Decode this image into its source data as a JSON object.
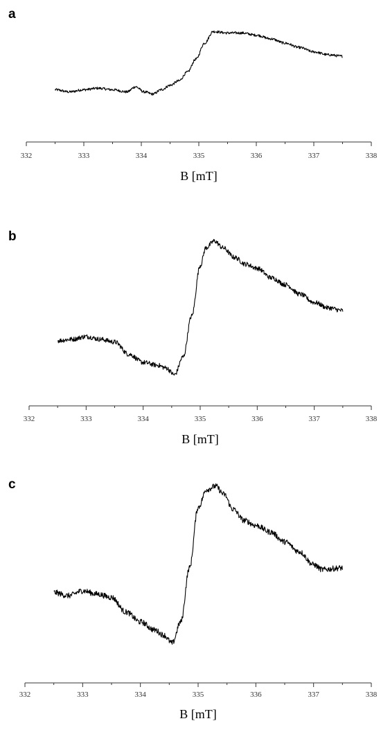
{
  "chart_data": [
    {
      "type": "line",
      "panel": "a",
      "xlabel": "B [mT]",
      "ylabel": "",
      "xlim": [
        332,
        338
      ],
      "xticks": [
        332,
        333,
        334,
        335,
        336,
        337,
        338
      ],
      "grid": false,
      "series": [
        {
          "x": [
            332.5,
            332.75,
            333.0,
            333.25,
            333.5,
            333.75,
            333.9,
            334.05,
            334.2,
            334.35,
            334.5,
            334.65,
            334.8,
            334.95,
            335.1,
            335.25,
            335.5,
            335.75,
            336.0,
            336.25,
            336.5,
            336.75,
            337.0,
            337.25,
            337.5
          ],
          "y": [
            0.1,
            0.07,
            0.1,
            0.12,
            0.1,
            0.07,
            0.14,
            0.07,
            0.04,
            0.1,
            0.16,
            0.22,
            0.34,
            0.52,
            0.74,
            0.9,
            0.88,
            0.88,
            0.85,
            0.8,
            0.74,
            0.68,
            0.62,
            0.58,
            0.56
          ]
        }
      ]
    },
    {
      "type": "line",
      "panel": "b",
      "xlabel": "B [mT]",
      "ylabel": "",
      "xlim": [
        332,
        338
      ],
      "xticks": [
        332,
        333,
        334,
        335,
        336,
        337,
        338
      ],
      "grid": false,
      "series": [
        {
          "x": [
            332.5,
            332.75,
            333.0,
            333.25,
            333.5,
            333.75,
            334.0,
            334.25,
            334.4,
            334.55,
            334.7,
            334.85,
            335.0,
            335.1,
            335.25,
            335.4,
            335.6,
            335.8,
            336.0,
            336.25,
            336.5,
            336.75,
            337.0,
            337.25,
            337.5
          ],
          "y": [
            0.27,
            0.28,
            0.3,
            0.28,
            0.26,
            0.17,
            0.11,
            0.09,
            0.07,
            0.02,
            0.15,
            0.45,
            0.82,
            0.95,
            1.0,
            0.95,
            0.88,
            0.83,
            0.8,
            0.73,
            0.68,
            0.61,
            0.55,
            0.51,
            0.49
          ]
        }
      ]
    },
    {
      "type": "line",
      "panel": "c",
      "xlabel": "B [mT]",
      "ylabel": "",
      "xlim": [
        332,
        338
      ],
      "xticks": [
        332,
        333,
        334,
        335,
        336,
        337,
        338
      ],
      "grid": false,
      "series": [
        {
          "x": [
            332.5,
            332.75,
            333.0,
            333.25,
            333.5,
            333.75,
            334.0,
            334.25,
            334.4,
            334.55,
            334.7,
            334.85,
            335.0,
            335.15,
            335.3,
            335.45,
            335.6,
            335.8,
            336.0,
            336.25,
            336.5,
            336.75,
            337.0,
            337.15,
            337.5
          ],
          "y": [
            0.35,
            0.33,
            0.36,
            0.34,
            0.32,
            0.23,
            0.17,
            0.12,
            0.09,
            0.04,
            0.17,
            0.5,
            0.87,
            0.98,
            1.0,
            0.95,
            0.86,
            0.79,
            0.76,
            0.72,
            0.66,
            0.6,
            0.52,
            0.49,
            0.5
          ]
        }
      ]
    }
  ]
}
